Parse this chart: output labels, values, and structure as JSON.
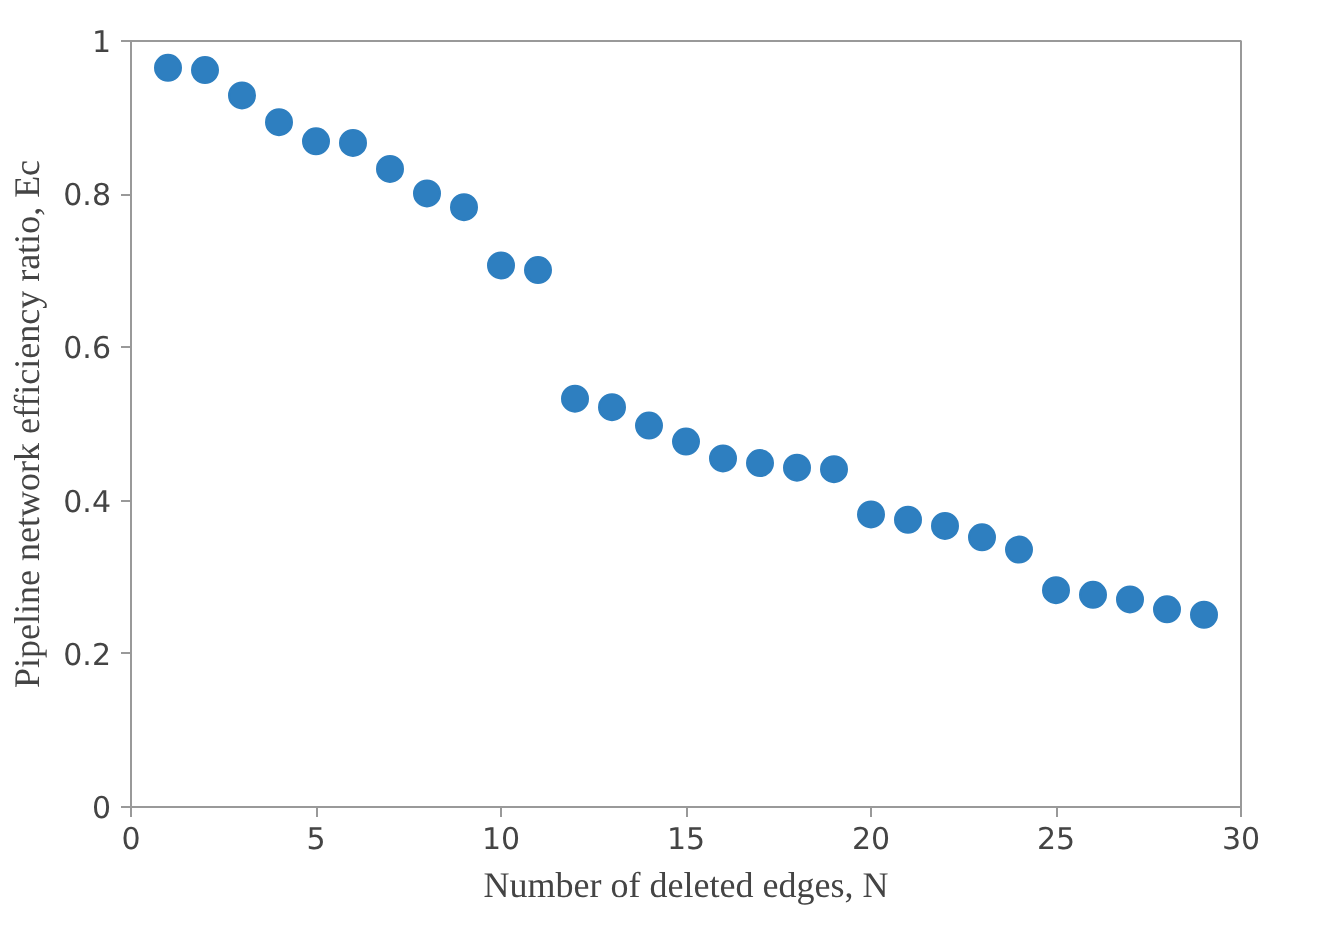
{
  "chart_data": {
    "type": "scatter",
    "xlabel": "Number of deleted edges, N",
    "ylabel": "Pipeline network efficiency ratio, Ec",
    "x": [
      1,
      2,
      3,
      4,
      5,
      6,
      7,
      8,
      9,
      10,
      11,
      12,
      13,
      14,
      15,
      16,
      17,
      18,
      19,
      20,
      21,
      22,
      23,
      24,
      25,
      26,
      27,
      28,
      29
    ],
    "series": [
      {
        "color": "#2e7fc0",
        "values": [
          0.965,
          0.962,
          0.929,
          0.894,
          0.869,
          0.867,
          0.833,
          0.801,
          0.783,
          0.707,
          0.701,
          0.533,
          0.522,
          0.498,
          0.477,
          0.455,
          0.449,
          0.443,
          0.441,
          0.382,
          0.375,
          0.367,
          0.352,
          0.336,
          0.283,
          0.277,
          0.271,
          0.258,
          0.251
        ]
      }
    ],
    "xlim": [
      0,
      30
    ],
    "ylim": [
      0,
      1
    ],
    "xticks": [
      0,
      5,
      10,
      15,
      20,
      25,
      30
    ],
    "yticks": [
      0,
      0.2,
      0.4,
      0.6,
      0.8,
      1
    ],
    "marker": "circle",
    "grid": false
  }
}
